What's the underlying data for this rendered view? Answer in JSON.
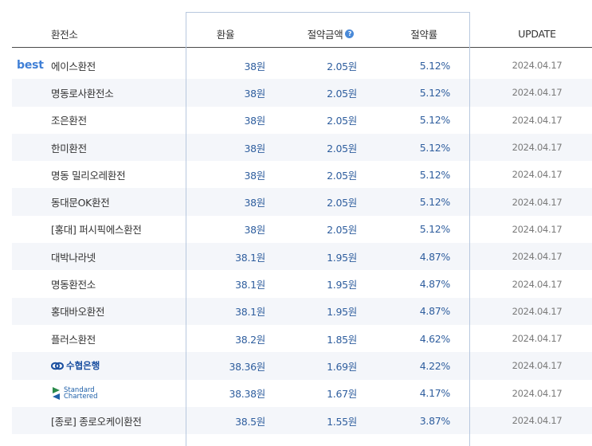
{
  "header": {
    "name": "환전소",
    "rate": "환율",
    "saving": "절약금액",
    "saving_help_icon": "question-circle-icon",
    "ratio": "절약률",
    "update": "UPDATE"
  },
  "best_badge": "best",
  "rows": [
    {
      "name": "에이스환전",
      "rate": "38원",
      "saving": "2.05원",
      "ratio": "5.12%",
      "update": "2024.04.17"
    },
    {
      "name": "명동로사환전소",
      "rate": "38원",
      "saving": "2.05원",
      "ratio": "5.12%",
      "update": "2024.04.17"
    },
    {
      "name": "조은환전",
      "rate": "38원",
      "saving": "2.05원",
      "ratio": "5.12%",
      "update": "2024.04.17"
    },
    {
      "name": "한미환전",
      "rate": "38원",
      "saving": "2.05원",
      "ratio": "5.12%",
      "update": "2024.04.17"
    },
    {
      "name": "명동 밀리오레환전",
      "rate": "38원",
      "saving": "2.05원",
      "ratio": "5.12%",
      "update": "2024.04.17"
    },
    {
      "name": "동대문OK환전",
      "rate": "38원",
      "saving": "2.05원",
      "ratio": "5.12%",
      "update": "2024.04.17"
    },
    {
      "name": "[홍대] 퍼시픽에스환전",
      "rate": "38원",
      "saving": "2.05원",
      "ratio": "5.12%",
      "update": "2024.04.17"
    },
    {
      "name": "대박나라넷",
      "rate": "38.1원",
      "saving": "1.95원",
      "ratio": "4.87%",
      "update": "2024.04.17"
    },
    {
      "name": "명동환전소",
      "rate": "38.1원",
      "saving": "1.95원",
      "ratio": "4.87%",
      "update": "2024.04.17"
    },
    {
      "name": "홍대바오환전",
      "rate": "38.1원",
      "saving": "1.95원",
      "ratio": "4.87%",
      "update": "2024.04.17"
    },
    {
      "name": "플러스환전",
      "rate": "38.2원",
      "saving": "1.85원",
      "ratio": "4.62%",
      "update": "2024.04.17"
    },
    {
      "name": "수협은행",
      "logo": "suhyup-bank-logo",
      "rate": "38.36원",
      "saving": "1.69원",
      "ratio": "4.22%",
      "update": "2024.04.17"
    },
    {
      "name_line1": "Standard",
      "name_line2": "Chartered",
      "logo": "standard-chartered-logo",
      "rate": "38.38원",
      "saving": "1.67원",
      "ratio": "4.17%",
      "update": "2024.04.17"
    },
    {
      "name": "[종로] 종로오케이환전",
      "rate": "38.5원",
      "saving": "1.55원",
      "ratio": "3.87%",
      "update": "2024.04.17"
    }
  ],
  "colors": {
    "accent": "#3f7fd6",
    "value_text": "#2f5e9e",
    "row_shade": "#f4f6fa",
    "highlight_border": "#b8c8de"
  }
}
